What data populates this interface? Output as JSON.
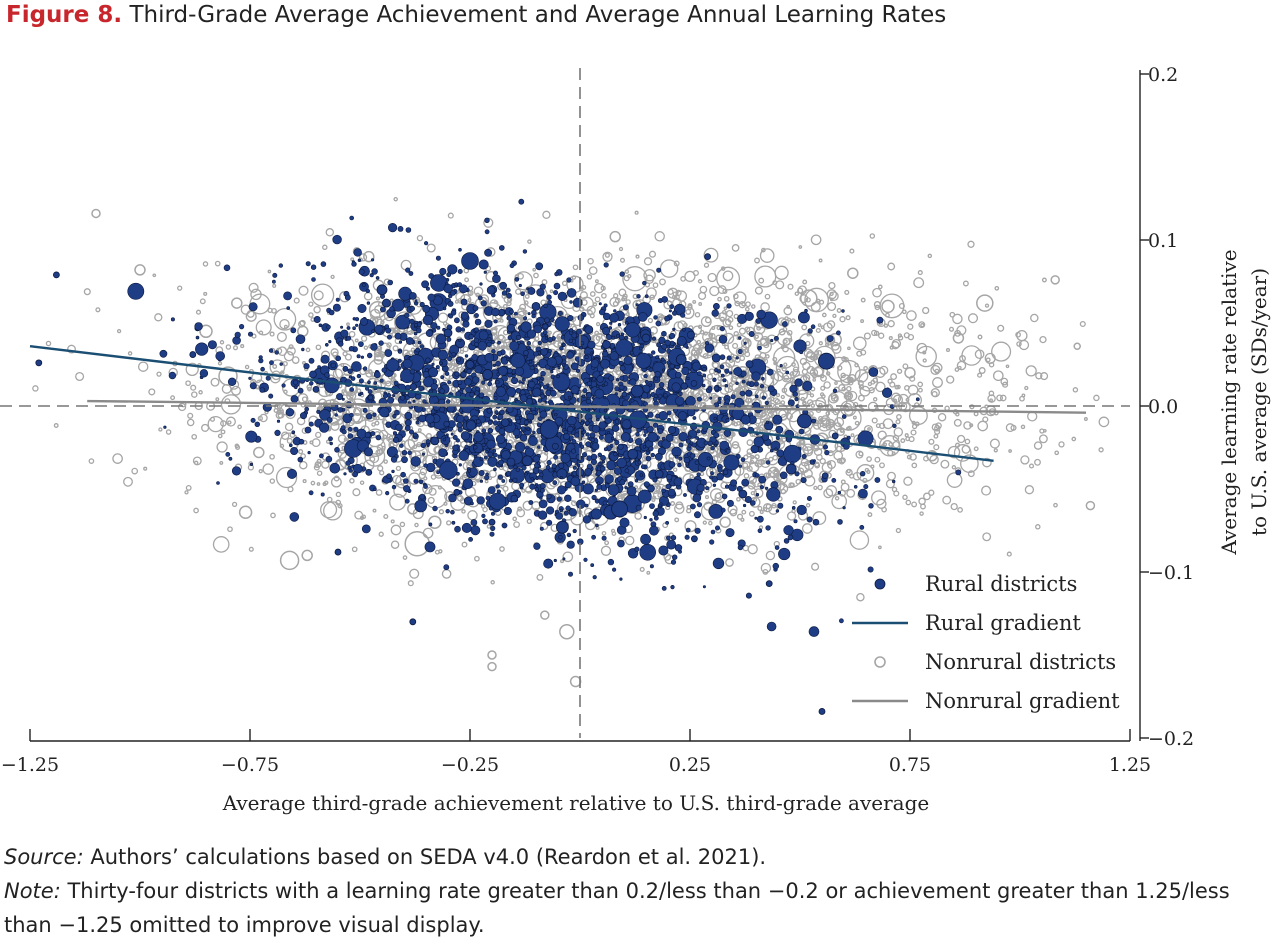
{
  "figure": {
    "number": "Figure 8.",
    "title": "Third-Grade Average Achievement and Average Annual Learning Rates"
  },
  "source": {
    "label": "Source:",
    "text": " Authors’ calculations based on SEDA v4.0 (Reardon et al. 2021)."
  },
  "note": {
    "label": "Note:",
    "text": " Thirty-four districts with a learning rate greater than 0.2/less than −0.2 or achievement greater than 1.25/less than −1.25 omitted to improve visual display."
  },
  "chart_data": {
    "type": "scatter",
    "title": "",
    "xlabel": "Average third-grade achievement relative to U.S. third-grade average",
    "ylabel": "Average learning rate relative to U.S. average (SDs/year)",
    "ylabel_lines": [
      "Average learning rate relative",
      "to U.S. average (SDs/year)"
    ],
    "xlim": [
      -1.25,
      1.25
    ],
    "ylim": [
      -0.2,
      0.2
    ],
    "x_ticks": [
      -1.25,
      -0.75,
      -0.25,
      0.25,
      0.75,
      1.25
    ],
    "x_tick_labels": [
      "−1.25",
      "−0.75",
      "−0.25",
      "0.25",
      "0.75",
      "1.25"
    ],
    "y_ticks": [
      0.2,
      0.1,
      0.0,
      -0.1,
      -0.2
    ],
    "y_tick_labels": [
      "0.2",
      "0.1",
      "0.0",
      "−0.1",
      "−0.2"
    ],
    "y_axis_side": "right",
    "grid": false,
    "reference_lines": {
      "x": 0,
      "y": 0,
      "style": "dashed"
    },
    "legend_position": "bottom-right",
    "colors": {
      "rural": "#1f3d85",
      "rural_edge": "#0c1a40",
      "rural_line": "#1b4e73",
      "nonrural": "#a6a6a6",
      "nonrural_line": "#8a8a8a",
      "ref_line": "#777777",
      "axis": "#222222"
    },
    "series": [
      {
        "name": "Rural districts",
        "kind": "points",
        "color": "#1f3d85",
        "points": [
          {
            "x": -1.23,
            "y": 0.026,
            "s": 3
          },
          {
            "x": -1.19,
            "y": 0.079,
            "s": 3
          },
          {
            "x": -0.88,
            "y": 0.031,
            "s": 3
          },
          {
            "x": -0.55,
            "y": -0.088,
            "s": 3
          },
          {
            "x": -0.45,
            "y": 0.07,
            "s": 5
          },
          {
            "x": -0.44,
            "y": 0.062,
            "s": 4
          },
          {
            "x": -0.38,
            "y": -0.13,
            "s": 3
          },
          {
            "x": -0.25,
            "y": 0.025,
            "s": 4
          },
          {
            "x": -0.21,
            "y": 0.019,
            "s": 5
          },
          {
            "x": -0.17,
            "y": -0.01,
            "s": 4
          },
          {
            "x": -0.12,
            "y": -0.033,
            "s": 5
          },
          {
            "x": -0.07,
            "y": -0.014,
            "s": 9
          },
          {
            "x": -0.04,
            "y": -0.073,
            "s": 6
          },
          {
            "x": -0.02,
            "y": -0.001,
            "s": 4
          },
          {
            "x": 0.06,
            "y": 0.037,
            "s": 4
          },
          {
            "x": 0.07,
            "y": -0.064,
            "s": 7
          },
          {
            "x": 0.09,
            "y": -0.062,
            "s": 8
          },
          {
            "x": 0.12,
            "y": -0.029,
            "s": 5
          },
          {
            "x": 0.13,
            "y": 0.009,
            "s": 6
          },
          {
            "x": 0.18,
            "y": -0.041,
            "s": 4
          },
          {
            "x": 0.23,
            "y": 0.028,
            "s": 5
          },
          {
            "x": 0.29,
            "y": 0.09,
            "s": 3
          },
          {
            "x": 0.37,
            "y": -0.053,
            "s": 4
          },
          {
            "x": 0.43,
            "y": -0.107,
            "s": 3
          },
          {
            "x": 0.48,
            "y": -0.038,
            "s": 5
          },
          {
            "x": 0.51,
            "y": -0.009,
            "s": 7
          },
          {
            "x": 0.56,
            "y": 0.027,
            "s": 8
          },
          {
            "x": 0.58,
            "y": -0.018,
            "s": 3
          },
          {
            "x": 0.55,
            "y": -0.184,
            "s": 3
          },
          {
            "x": -0.3,
            "y": 0.044,
            "s": 4
          },
          {
            "x": -0.33,
            "y": -0.021,
            "s": 4
          },
          {
            "x": 0.02,
            "y": 0.046,
            "s": 4
          },
          {
            "x": 0.15,
            "y": 0.041,
            "s": 4
          },
          {
            "x": -0.1,
            "y": 0.06,
            "s": 4
          },
          {
            "x": 0.31,
            "y": 0.06,
            "s": 3
          },
          {
            "x": -0.6,
            "y": 0.01,
            "s": 3
          },
          {
            "x": -0.2,
            "y": -0.07,
            "s": 3
          },
          {
            "x": 0.26,
            "y": -0.08,
            "s": 3
          },
          {
            "x": 0.4,
            "y": 0.0,
            "s": 4
          },
          {
            "x": -0.48,
            "y": -0.04,
            "s": 3
          },
          {
            "x": 0.0,
            "y": -0.04,
            "s": 4
          },
          {
            "x": -0.28,
            "y": -0.052,
            "s": 3
          }
        ]
      },
      {
        "name": "Rural gradient",
        "kind": "line",
        "color": "#1b4e73",
        "x": [
          -1.25,
          0.94
        ],
        "y": [
          0.036,
          -0.033
        ]
      },
      {
        "name": "Nonrural districts",
        "kind": "points",
        "color": "#a6a6a6",
        "points": [
          {
            "x": -1.1,
            "y": 0.116,
            "s": 4
          },
          {
            "x": -1.0,
            "y": 0.082,
            "s": 5
          },
          {
            "x": -0.85,
            "y": 0.045,
            "s": 6
          },
          {
            "x": -0.8,
            "y": 0.018,
            "s": 9
          },
          {
            "x": -0.78,
            "y": 0.062,
            "s": 5
          },
          {
            "x": -0.76,
            "y": -0.064,
            "s": 6
          },
          {
            "x": -0.73,
            "y": -0.028,
            "s": 5
          },
          {
            "x": -0.66,
            "y": -0.093,
            "s": 9
          },
          {
            "x": -0.63,
            "y": 0.045,
            "s": 5
          },
          {
            "x": -0.58,
            "y": 0.01,
            "s": 7
          },
          {
            "x": -0.52,
            "y": 0.01,
            "s": 6
          },
          {
            "x": -0.48,
            "y": 0.09,
            "s": 5
          },
          {
            "x": -0.46,
            "y": 0.058,
            "s": 8
          },
          {
            "x": -0.4,
            "y": 0.005,
            "s": 6
          },
          {
            "x": -0.38,
            "y": -0.062,
            "s": 5
          },
          {
            "x": -0.37,
            "y": -0.083,
            "s": 12
          },
          {
            "x": -0.33,
            "y": -0.07,
            "s": 6
          },
          {
            "x": -0.28,
            "y": 0.005,
            "s": 5
          },
          {
            "x": -0.26,
            "y": 0.064,
            "s": 5
          },
          {
            "x": -0.22,
            "y": 0.01,
            "s": 5
          },
          {
            "x": -0.18,
            "y": 0.028,
            "s": 7
          },
          {
            "x": -0.15,
            "y": -0.02,
            "s": 8
          },
          {
            "x": -0.12,
            "y": 0.012,
            "s": 5
          },
          {
            "x": -0.1,
            "y": -0.06,
            "s": 4
          },
          {
            "x": -0.08,
            "y": -0.126,
            "s": 4
          },
          {
            "x": -0.05,
            "y": 0.042,
            "s": 5
          },
          {
            "x": -0.03,
            "y": -0.012,
            "s": 6
          },
          {
            "x": -0.03,
            "y": -0.136,
            "s": 7
          },
          {
            "x": -0.01,
            "y": -0.166,
            "s": 5
          },
          {
            "x": 0.03,
            "y": 0.02,
            "s": 7
          },
          {
            "x": 0.06,
            "y": -0.035,
            "s": 6
          },
          {
            "x": 0.1,
            "y": 0.055,
            "s": 5
          },
          {
            "x": 0.12,
            "y": -0.012,
            "s": 5
          },
          {
            "x": 0.15,
            "y": -0.05,
            "s": 6
          },
          {
            "x": 0.18,
            "y": 0.023,
            "s": 5
          },
          {
            "x": 0.22,
            "y": -0.018,
            "s": 7
          },
          {
            "x": 0.26,
            "y": 0.0,
            "s": 6
          },
          {
            "x": 0.3,
            "y": 0.038,
            "s": 5
          },
          {
            "x": 0.33,
            "y": -0.07,
            "s": 5
          },
          {
            "x": 0.37,
            "y": 0.02,
            "s": 6
          },
          {
            "x": 0.41,
            "y": 0.05,
            "s": 5
          },
          {
            "x": 0.44,
            "y": -0.04,
            "s": 5
          },
          {
            "x": 0.48,
            "y": 0.01,
            "s": 7
          },
          {
            "x": 0.52,
            "y": 0.065,
            "s": 8
          },
          {
            "x": 0.55,
            "y": -0.02,
            "s": 6
          },
          {
            "x": 0.58,
            "y": 0.04,
            "s": 6
          },
          {
            "x": 0.62,
            "y": 0.08,
            "s": 5
          },
          {
            "x": 0.66,
            "y": -0.022,
            "s": 5
          },
          {
            "x": 0.7,
            "y": 0.06,
            "s": 6
          },
          {
            "x": 0.75,
            "y": 0.02,
            "s": 5
          },
          {
            "x": 0.8,
            "y": -0.03,
            "s": 5
          },
          {
            "x": 0.86,
            "y": 0.041,
            "s": 5
          },
          {
            "x": 0.92,
            "y": 0.062,
            "s": 8
          },
          {
            "x": 1.08,
            "y": 0.076,
            "s": 4
          },
          {
            "x": 1.13,
            "y": 0.036,
            "s": 3
          },
          {
            "x": 1.16,
            "y": -0.06,
            "s": 4
          },
          {
            "x": -0.2,
            "y": -0.15,
            "s": 4
          },
          {
            "x": -0.2,
            "y": -0.157,
            "s": 4
          },
          {
            "x": 0.08,
            "y": 0.102,
            "s": 5
          },
          {
            "x": -0.62,
            "y": -0.09,
            "s": 5
          }
        ]
      },
      {
        "name": "Nonrural gradient",
        "kind": "line",
        "color": "#8a8a8a",
        "x": [
          -1.12,
          1.15
        ],
        "y": [
          0.003,
          -0.004
        ]
      }
    ]
  }
}
